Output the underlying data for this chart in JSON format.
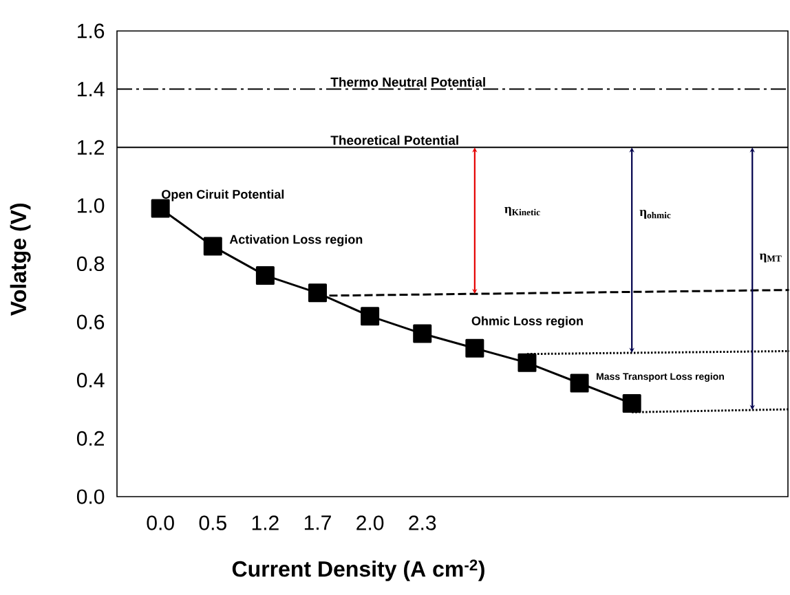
{
  "chart_data": {
    "type": "line",
    "xlabel": "Current Density (A cm$^{-2}$)",
    "ylabel": "Volatge (V)",
    "ylim": [
      0,
      1.6
    ],
    "marker": "square",
    "categories": [
      "0.0",
      "0.5",
      "1.2",
      "1.7",
      "2.0",
      "2.3",
      null,
      null,
      null,
      null,
      null,
      null,
      null
    ],
    "yticks": [
      {
        "value": 0,
        "label": "0.0"
      },
      {
        "value": 0.2,
        "label": "0.2"
      },
      {
        "value": 0.4,
        "label": "0.4"
      },
      {
        "value": 0.6,
        "label": "0.6"
      },
      {
        "value": 0.8,
        "label": "0.8"
      },
      {
        "value": 1.0,
        "label": "1.0"
      },
      {
        "value": 1.2,
        "label": "1.2"
      },
      {
        "value": 1.4,
        "label": "1.4"
      },
      {
        "value": 1.6,
        "label": "1.6"
      }
    ],
    "series": [
      {
        "color": "#000000",
        "values": [
          0.99,
          0.86,
          0.76,
          0.7,
          0.62,
          0.56,
          0.51,
          0.46,
          0.39,
          0.32,
          null,
          null,
          null
        ],
        "line_style": "solid"
      },
      {
        "color": "#000000",
        "values": [
          null,
          null,
          null,
          0.69,
          null,
          null,
          null,
          null,
          null,
          null,
          null,
          null,
          0.71
        ],
        "line_style": "dashed",
        "marker": "none"
      },
      {
        "color": "#000000",
        "values": [
          null,
          null,
          null,
          null,
          null,
          null,
          null,
          0.49,
          null,
          null,
          null,
          null,
          0.5
        ],
        "line_style": "dotted",
        "marker": "none"
      },
      {
        "color": "#000000",
        "values": [
          null,
          null,
          null,
          null,
          null,
          null,
          null,
          null,
          null,
          0.29,
          null,
          null,
          0.3
        ],
        "line_style": "dotted",
        "marker": "none"
      }
    ],
    "ref_lines": [
      {
        "axis": "y",
        "value": 1.4,
        "label": "Thermo Neutral Potential",
        "line_style": "dashdot"
      },
      {
        "axis": "y",
        "value": 1.2,
        "label": "Theoretical Potential",
        "line_style": "solid"
      }
    ],
    "annotations": [
      "Open Ciruit Potential",
      "Activation Loss region",
      "Ohmic Loss region",
      "Mass Transport  Loss region",
      "η$_{Kinetic}$",
      "η$_{ohmic}$",
      "η$_{MT}$"
    ]
  }
}
